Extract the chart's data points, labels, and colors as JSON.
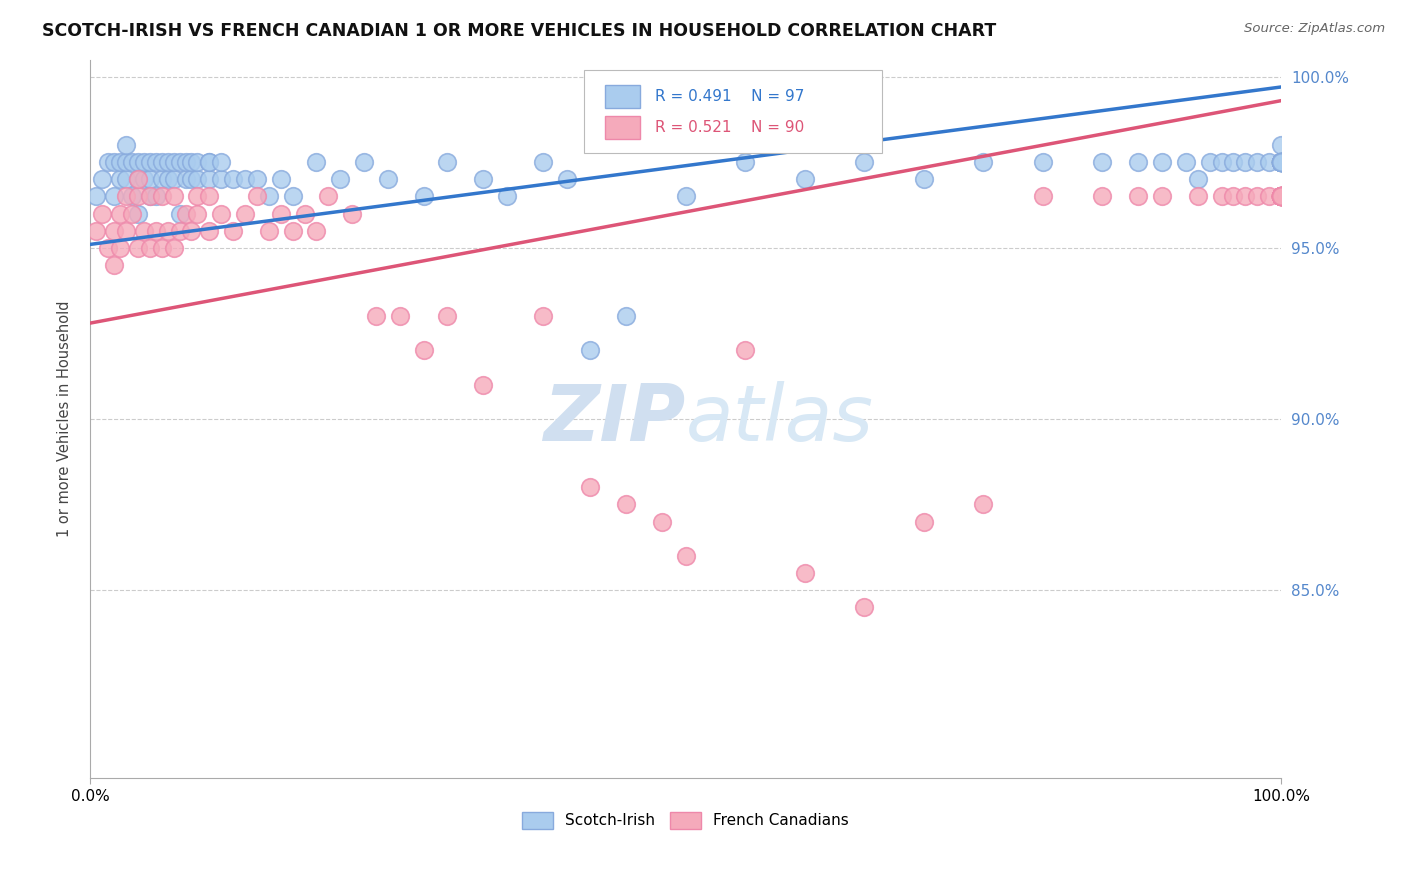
{
  "title": "SCOTCH-IRISH VS FRENCH CANADIAN 1 OR MORE VEHICLES IN HOUSEHOLD CORRELATION CHART",
  "source_text": "Source: ZipAtlas.com",
  "ylabel": "1 or more Vehicles in Household",
  "xmin": 0.0,
  "xmax": 1.0,
  "ymin": 0.795,
  "ymax": 1.005,
  "ytick_values": [
    0.85,
    0.9,
    0.95,
    1.0
  ],
  "legend_blue_label": "Scotch-Irish",
  "legend_pink_label": "French Canadians",
  "blue_R": "R = 0.491",
  "blue_N": "N = 97",
  "pink_R": "R = 0.521",
  "pink_N": "N = 90",
  "blue_line_color": "#3377cc",
  "pink_line_color": "#dd5577",
  "blue_scatter_face": "#aaccee",
  "pink_scatter_face": "#f5aabb",
  "blue_scatter_edge": "#88aadd",
  "pink_scatter_edge": "#ee88aa",
  "grid_color": "#cccccc",
  "title_color": "#111111",
  "source_color": "#666666",
  "right_label_color": "#5588cc",
  "watermark_color": "#d0dff0",
  "blue_line_intercept": 0.951,
  "blue_line_slope": 0.046,
  "pink_line_intercept": 0.928,
  "pink_line_slope": 0.065,
  "blue_x": [
    0.005,
    0.01,
    0.015,
    0.02,
    0.02,
    0.025,
    0.025,
    0.03,
    0.03,
    0.03,
    0.035,
    0.035,
    0.04,
    0.04,
    0.04,
    0.045,
    0.045,
    0.05,
    0.05,
    0.05,
    0.055,
    0.055,
    0.06,
    0.06,
    0.065,
    0.065,
    0.07,
    0.07,
    0.075,
    0.075,
    0.08,
    0.08,
    0.085,
    0.085,
    0.09,
    0.09,
    0.1,
    0.1,
    0.1,
    0.11,
    0.11,
    0.12,
    0.13,
    0.14,
    0.15,
    0.16,
    0.17,
    0.19,
    0.21,
    0.23,
    0.25,
    0.28,
    0.3,
    0.33,
    0.35,
    0.38,
    0.4,
    0.42,
    0.45,
    0.5,
    0.55,
    0.6,
    0.65,
    0.7,
    0.75,
    0.8,
    0.85,
    0.88,
    0.9,
    0.92,
    0.93,
    0.94,
    0.95,
    0.96,
    0.97,
    0.98,
    0.99,
    1.0,
    1.0,
    1.0,
    1.0,
    1.0,
    1.0,
    1.0,
    1.0,
    1.0,
    1.0,
    1.0,
    1.0,
    1.0,
    1.0,
    1.0,
    1.0,
    1.0,
    1.0,
    1.0,
    1.0
  ],
  "blue_y": [
    0.965,
    0.97,
    0.975,
    0.965,
    0.975,
    0.97,
    0.975,
    0.97,
    0.975,
    0.98,
    0.965,
    0.975,
    0.96,
    0.97,
    0.975,
    0.97,
    0.975,
    0.965,
    0.97,
    0.975,
    0.965,
    0.975,
    0.97,
    0.975,
    0.97,
    0.975,
    0.97,
    0.975,
    0.96,
    0.975,
    0.97,
    0.975,
    0.97,
    0.975,
    0.97,
    0.975,
    0.97,
    0.975,
    0.975,
    0.97,
    0.975,
    0.97,
    0.97,
    0.97,
    0.965,
    0.97,
    0.965,
    0.975,
    0.97,
    0.975,
    0.97,
    0.965,
    0.975,
    0.97,
    0.965,
    0.975,
    0.97,
    0.92,
    0.93,
    0.965,
    0.975,
    0.97,
    0.975,
    0.97,
    0.975,
    0.975,
    0.975,
    0.975,
    0.975,
    0.975,
    0.97,
    0.975,
    0.975,
    0.975,
    0.975,
    0.975,
    0.975,
    0.975,
    0.975,
    0.975,
    0.98,
    0.975,
    0.975,
    0.975,
    0.975,
    0.975,
    0.975,
    0.975,
    0.975,
    0.975,
    0.975,
    0.975,
    0.975,
    0.975,
    0.975,
    0.975,
    0.975
  ],
  "pink_x": [
    0.005,
    0.01,
    0.015,
    0.02,
    0.02,
    0.025,
    0.025,
    0.03,
    0.03,
    0.035,
    0.04,
    0.04,
    0.04,
    0.045,
    0.05,
    0.05,
    0.055,
    0.06,
    0.06,
    0.065,
    0.07,
    0.07,
    0.075,
    0.08,
    0.085,
    0.09,
    0.09,
    0.1,
    0.1,
    0.11,
    0.12,
    0.13,
    0.14,
    0.15,
    0.16,
    0.17,
    0.18,
    0.19,
    0.2,
    0.22,
    0.24,
    0.26,
    0.28,
    0.3,
    0.33,
    0.38,
    0.42,
    0.45,
    0.48,
    0.5,
    0.55,
    0.6,
    0.65,
    0.7,
    0.75,
    0.8,
    0.85,
    0.88,
    0.9,
    0.93,
    0.95,
    0.96,
    0.97,
    0.98,
    0.99,
    1.0,
    1.0,
    1.0,
    1.0,
    1.0,
    1.0,
    1.0,
    1.0,
    1.0,
    1.0,
    1.0,
    1.0,
    1.0,
    1.0,
    1.0,
    1.0,
    1.0,
    1.0,
    1.0,
    1.0,
    1.0,
    1.0,
    1.0,
    1.0,
    1.0
  ],
  "pink_y": [
    0.955,
    0.96,
    0.95,
    0.945,
    0.955,
    0.95,
    0.96,
    0.955,
    0.965,
    0.96,
    0.95,
    0.965,
    0.97,
    0.955,
    0.95,
    0.965,
    0.955,
    0.95,
    0.965,
    0.955,
    0.95,
    0.965,
    0.955,
    0.96,
    0.955,
    0.96,
    0.965,
    0.955,
    0.965,
    0.96,
    0.955,
    0.96,
    0.965,
    0.955,
    0.96,
    0.955,
    0.96,
    0.955,
    0.965,
    0.96,
    0.93,
    0.93,
    0.92,
    0.93,
    0.91,
    0.93,
    0.88,
    0.875,
    0.87,
    0.86,
    0.92,
    0.855,
    0.845,
    0.87,
    0.875,
    0.965,
    0.965,
    0.965,
    0.965,
    0.965,
    0.965,
    0.965,
    0.965,
    0.965,
    0.965,
    0.965,
    0.965,
    0.965,
    0.965,
    0.965,
    0.965,
    0.965,
    0.965,
    0.965,
    0.965,
    0.965,
    0.965,
    0.965,
    0.965,
    0.965,
    0.965,
    0.965,
    0.965,
    0.965,
    0.965,
    0.965,
    0.965,
    0.965,
    0.965,
    0.965
  ]
}
